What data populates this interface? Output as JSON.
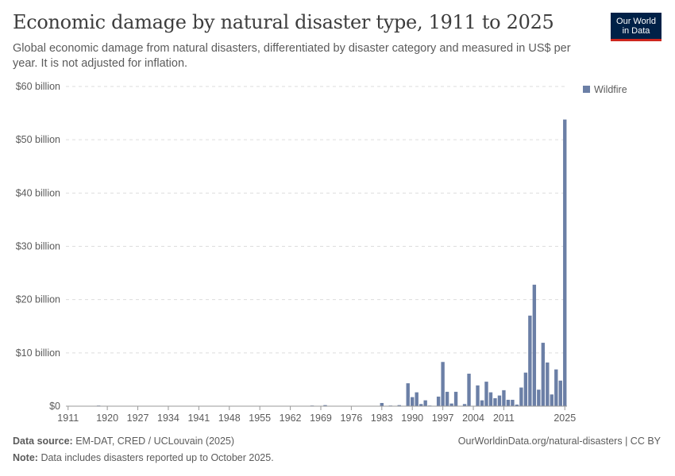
{
  "title": "Economic damage by natural disaster type, 1911 to 2025",
  "subtitle": "Global economic damage from natural disasters, differentiated by disaster category and measured in US$ per year. It is not adjusted for inflation.",
  "logo": {
    "line1": "Our World",
    "line2": "in Data"
  },
  "footer": {
    "source_label": "Data source:",
    "source_text": "EM-DAT, CRED / UCLouvain (2025)",
    "note_label": "Note:",
    "note_text": "Data includes disasters reported up to October 2025.",
    "url_text": "OurWorldinData.org/natural-disasters | CC BY"
  },
  "colors": {
    "series": "#6b7fa6",
    "grid": "#dddddd",
    "axis": "#999999"
  },
  "chart_data": {
    "type": "bar",
    "xlabel": "",
    "ylabel": "",
    "ylim": [
      0,
      60
    ],
    "y_unit": "billion US$",
    "y_tick_values": [
      0,
      10,
      20,
      30,
      40,
      50,
      60
    ],
    "y_tick_labels": [
      "$0",
      "$10 billion",
      "$20 billion",
      "$30 billion",
      "$40 billion",
      "$50 billion",
      "$60 billion"
    ],
    "x_tick_labels": [
      "1911",
      "1920",
      "1927",
      "1934",
      "1941",
      "1948",
      "1955",
      "1962",
      "1969",
      "1976",
      "1983",
      "1990",
      "1997",
      "2004",
      "2011",
      "2025"
    ],
    "grid": true,
    "legend_position": "top-right",
    "series": [
      {
        "name": "Wildfire",
        "x": [
          1918,
          1967,
          1970,
          1983,
          1985,
          1987,
          1989,
          1990,
          1991,
          1992,
          1993,
          1994,
          1996,
          1997,
          1998,
          1999,
          2000,
          2002,
          2003,
          2005,
          2006,
          2007,
          2008,
          2009,
          2010,
          2011,
          2012,
          2013,
          2014,
          2015,
          2016,
          2017,
          2018,
          2019,
          2020,
          2021,
          2022,
          2023,
          2024,
          2025
        ],
        "values": [
          0.1,
          0.1,
          0.2,
          0.6,
          0.1,
          0.2,
          4.3,
          1.7,
          2.6,
          0.4,
          1.1,
          0.1,
          1.8,
          8.3,
          2.7,
          0.5,
          2.7,
          0.4,
          6.1,
          3.9,
          1.1,
          4.6,
          2.6,
          1.5,
          2.0,
          3.0,
          1.2,
          1.2,
          0.3,
          3.5,
          6.3,
          17.0,
          22.8,
          3.1,
          11.9,
          8.2,
          2.2,
          6.9,
          4.8,
          53.8
        ]
      }
    ]
  }
}
